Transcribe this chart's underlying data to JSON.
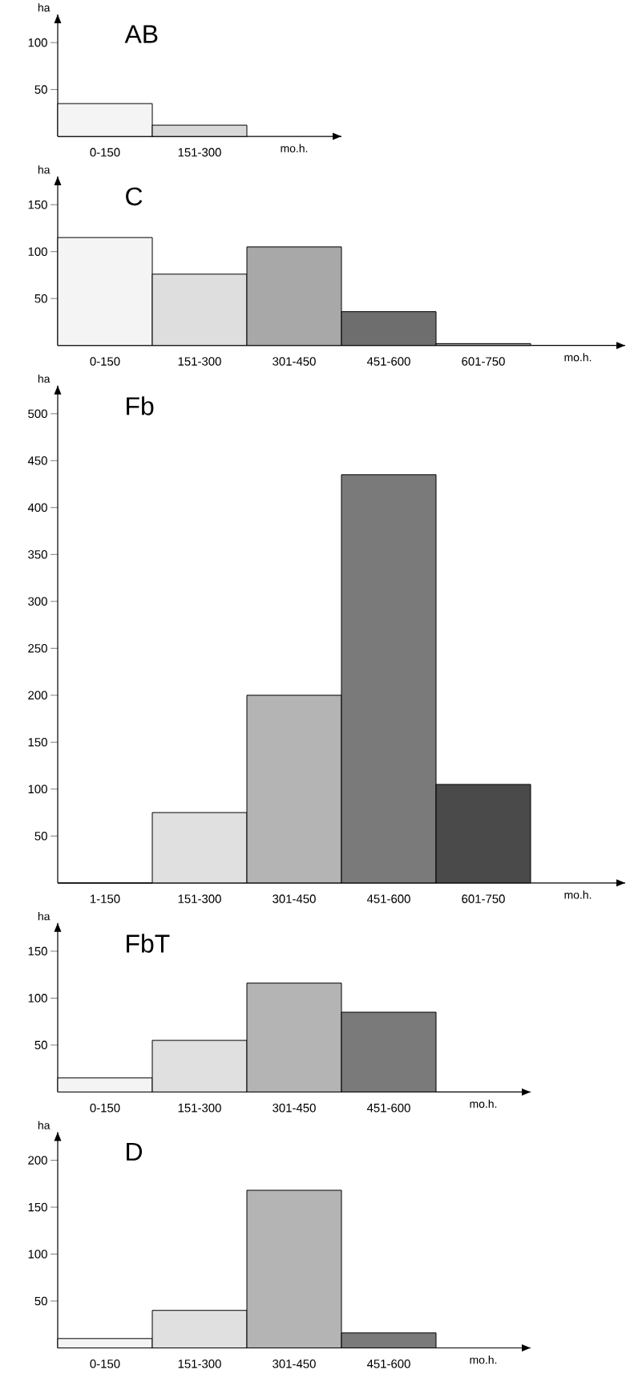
{
  "chart_data": [
    {
      "type": "bar",
      "title": "AB",
      "ylabel": "ha",
      "xlabel": "mo.h.",
      "categories": [
        "0-150",
        "151-300"
      ],
      "values": [
        35,
        12
      ],
      "colors": [
        "#f4f4f4",
        "#d8d8d8"
      ],
      "ylim": [
        0,
        130
      ],
      "yticks": [
        50,
        100
      ]
    },
    {
      "type": "bar",
      "title": "C",
      "ylabel": "ha",
      "xlabel": "mo.h.",
      "categories": [
        "0-150",
        "151-300",
        "301-450",
        "451-600",
        "601-750"
      ],
      "values": [
        115,
        76,
        105,
        36,
        2
      ],
      "colors": [
        "#f4f4f4",
        "#dedede",
        "#a8a8a8",
        "#6e6e6e",
        "#9a9a9a"
      ],
      "ylim": [
        0,
        180
      ],
      "yticks": [
        50,
        100,
        150
      ]
    },
    {
      "type": "bar",
      "title": "Fb",
      "ylabel": "ha",
      "xlabel": "mo.h.",
      "categories": [
        "1-150",
        "151-300",
        "301-450",
        "451-600",
        "601-750"
      ],
      "values": [
        0,
        75,
        200,
        435,
        105
      ],
      "colors": [
        "#f4f4f4",
        "#e0e0e0",
        "#b4b4b4",
        "#7a7a7a",
        "#4a4a4a"
      ],
      "ylim": [
        0,
        530
      ],
      "yticks": [
        50,
        100,
        150,
        200,
        250,
        300,
        350,
        400,
        450,
        500
      ]
    },
    {
      "type": "bar",
      "title": "FbT",
      "ylabel": "ha",
      "xlabel": "mo.h.",
      "categories": [
        "0-150",
        "151-300",
        "301-450",
        "451-600"
      ],
      "values": [
        15,
        55,
        116,
        85
      ],
      "colors": [
        "#f4f4f4",
        "#e0e0e0",
        "#b4b4b4",
        "#7a7a7a"
      ],
      "ylim": [
        0,
        180
      ],
      "yticks": [
        50,
        100,
        150
      ]
    },
    {
      "type": "bar",
      "title": "D",
      "ylabel": "ha",
      "xlabel": "mo.h.",
      "categories": [
        "0-150",
        "151-300",
        "301-450",
        "451-600"
      ],
      "values": [
        10,
        40,
        168,
        16
      ],
      "colors": [
        "#f4f4f4",
        "#e0e0e0",
        "#b4b4b4",
        "#7a7a7a"
      ],
      "ylim": [
        0,
        230
      ],
      "yticks": [
        50,
        100,
        150,
        200
      ]
    }
  ]
}
